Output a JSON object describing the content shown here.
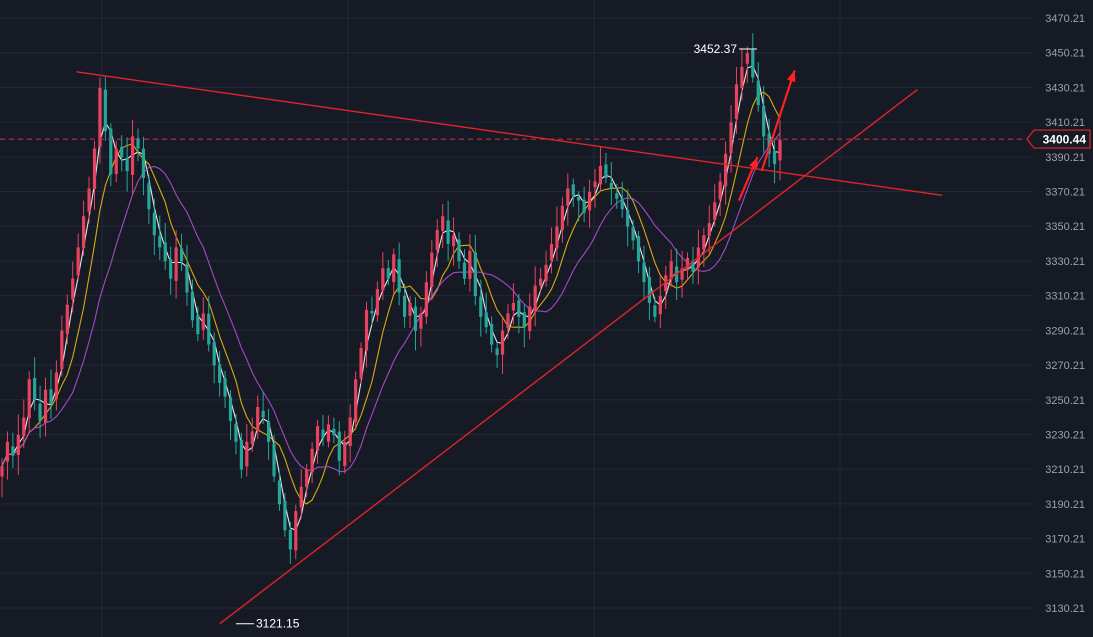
{
  "chart_data": {
    "type": "candlestick",
    "title": "",
    "xlabel": "",
    "ylabel": "",
    "ylim": [
      3121.15,
      3477.5
    ],
    "y_ticks": [
      "3470.21",
      "3450.21",
      "3430.21",
      "3410.21",
      "3390.21",
      "3370.21",
      "3350.21",
      "3330.21",
      "3310.21",
      "3290.21",
      "3270.21",
      "3250.21",
      "3230.21",
      "3210.21",
      "3190.21",
      "3170.21",
      "3150.21",
      "3130.21"
    ],
    "grid": true,
    "colors": {
      "up": "#e7435f",
      "down": "#26a69a",
      "ma_fast": "#ffffff",
      "ma_mid": "#f0b90b",
      "ma_slow": "#b44fd6",
      "trend": "#e0242c",
      "arrow": "#ff2020",
      "background": "#161a25",
      "grid": "#232838"
    },
    "current_price": "3400.44",
    "current_price_value": 3400.44,
    "annotations": [
      {
        "text": "3452.37",
        "value": 3452.37,
        "kind": "high"
      },
      {
        "text": "3121.15",
        "value": 3121.15,
        "kind": "low"
      }
    ],
    "trendlines": [
      {
        "name": "resistance",
        "from": [
          0.074,
          3439.2
        ],
        "to": [
          0.913,
          3368.0
        ]
      },
      {
        "name": "support",
        "from": [
          0.213,
          3121.15
        ],
        "to": [
          0.889,
          3429.0
        ]
      }
    ],
    "arrows": [
      {
        "from": [
          0.716,
          3365.0
        ],
        "to": [
          0.734,
          3390.0
        ]
      },
      {
        "from": [
          0.738,
          3382.0
        ],
        "to": [
          0.77,
          3440.0
        ]
      }
    ],
    "visible_x_range": [
      0.0,
      1.0
    ],
    "candles_close": [
      3212,
      3226,
      3218,
      3230,
      3240,
      3262,
      3250,
      3238,
      3256,
      3248,
      3266,
      3290,
      3305,
      3320,
      3338,
      3356,
      3372,
      3395,
      3430,
      3405,
      3380,
      3395,
      3390,
      3382,
      3402,
      3395,
      3378,
      3360,
      3345,
      3338,
      3330,
      3320,
      3338,
      3330,
      3312,
      3296,
      3288,
      3300,
      3282,
      3270,
      3260,
      3252,
      3238,
      3226,
      3210,
      3226,
      3232,
      3246,
      3240,
      3226,
      3206,
      3190,
      3175,
      3164,
      3186,
      3200,
      3210,
      3222,
      3235,
      3228,
      3236,
      3230,
      3215,
      3226,
      3240,
      3262,
      3280,
      3302,
      3300,
      3314,
      3326,
      3320,
      3334,
      3312,
      3298,
      3306,
      3290,
      3300,
      3318,
      3335,
      3348,
      3356,
      3340,
      3345,
      3330,
      3320,
      3336,
      3310,
      3298,
      3292,
      3282,
      3276,
      3290,
      3300,
      3306,
      3298,
      3292,
      3304,
      3316,
      3320,
      3328,
      3340,
      3350,
      3362,
      3372,
      3368,
      3365,
      3358,
      3370,
      3376,
      3385,
      3378,
      3372,
      3366,
      3360,
      3350,
      3342,
      3330,
      3318,
      3306,
      3298,
      3310,
      3322,
      3330,
      3318,
      3326,
      3332,
      3324,
      3338,
      3345,
      3352,
      3364,
      3376,
      3392,
      3410,
      3432,
      3442,
      3450,
      3436,
      3420,
      3402,
      3392,
      3386,
      3400
    ]
  }
}
